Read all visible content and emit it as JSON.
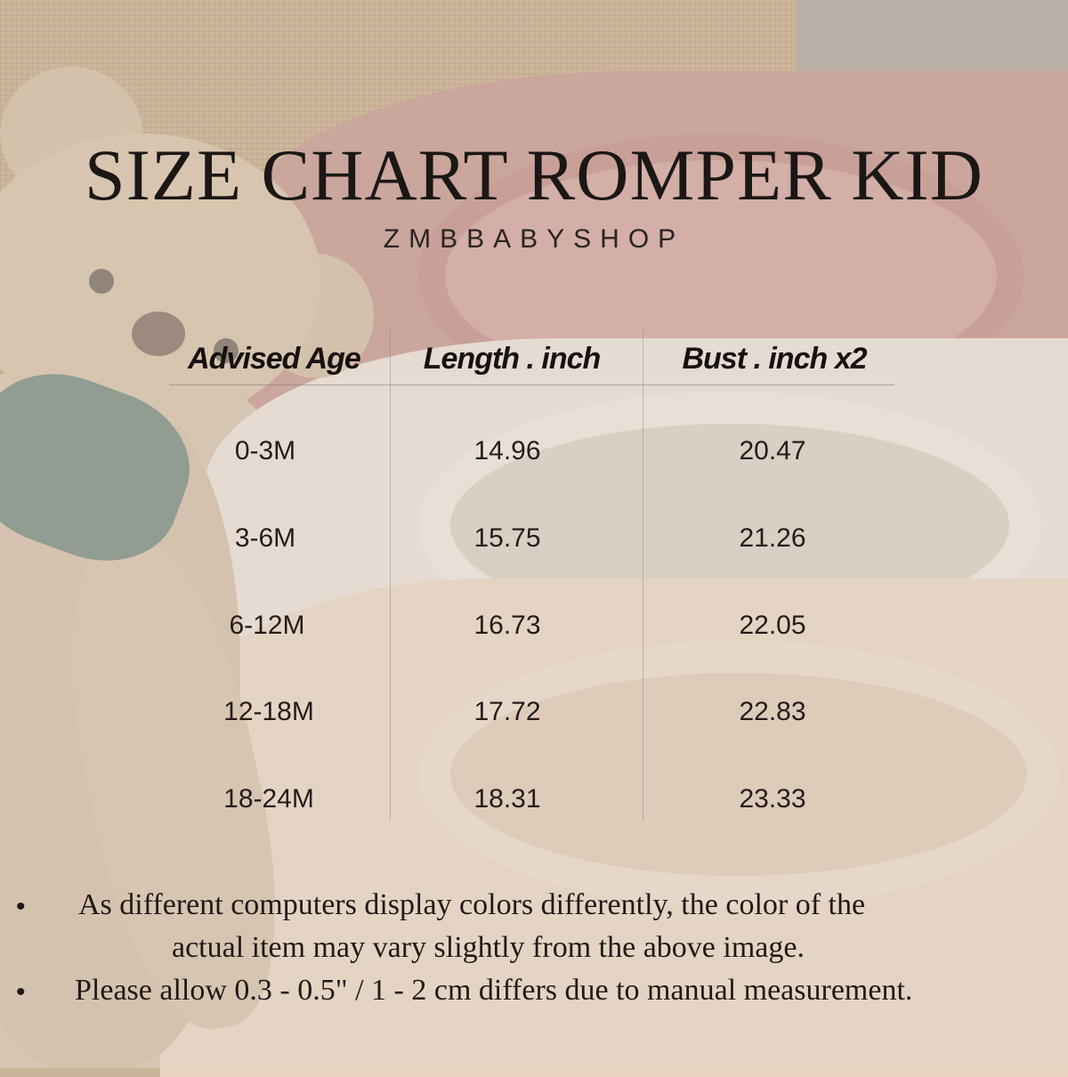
{
  "title": "SIZE CHART ROMPER KID",
  "brand": "ZMBBABYSHOP",
  "table": {
    "headers": [
      "Advised Age",
      "Length . inch",
      "Bust . inch x2"
    ],
    "rows": [
      [
        "0-3M",
        "14.96",
        "20.47"
      ],
      [
        "3-6M",
        "15.75",
        "21.26"
      ],
      [
        "6-12M",
        "16.73",
        "22.05"
      ],
      [
        "12-18M",
        "17.72",
        "22.83"
      ],
      [
        "18-24M",
        "18.31",
        "23.33"
      ]
    ]
  },
  "notes": [
    "As different computers display colors differently, the color of the",
    "actual item may vary slightly from the above image.",
    "Please allow 0.3 - 0.5\" / 1 - 2 cm differs due to manual measurement."
  ],
  "bullet": "•"
}
